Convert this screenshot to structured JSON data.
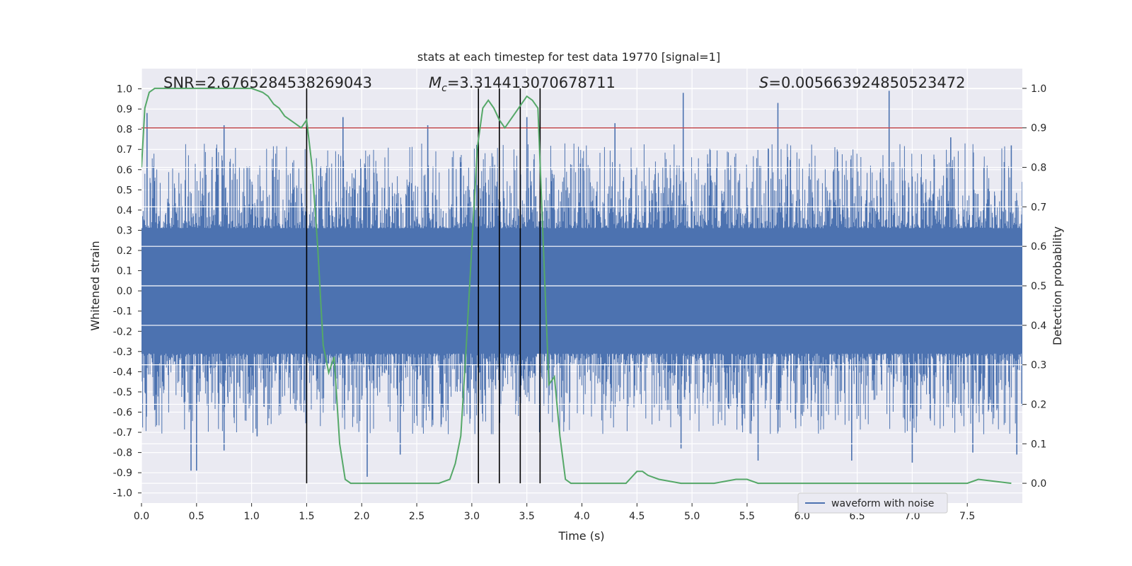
{
  "chart_data": {
    "type": "line",
    "title": "stats at each timestep for test data 19770 [signal=1]",
    "xlabel": "Time (s)",
    "ylabel": "Whitened strain",
    "y2label": "Detection probability",
    "xlim": [
      0,
      8
    ],
    "ylim": [
      -1.05,
      1.1
    ],
    "y2lim": [
      -0.05,
      1.05
    ],
    "x_ticks": [
      0.0,
      0.5,
      1.0,
      1.5,
      2.0,
      2.5,
      3.0,
      3.5,
      4.0,
      4.5,
      5.0,
      5.5,
      6.0,
      6.5,
      7.0,
      7.5
    ],
    "x_tick_labels": [
      "0.0",
      "0.5",
      "1.0",
      "1.5",
      "2.0",
      "2.5",
      "3.0",
      "3.5",
      "4.0",
      "4.5",
      "5.0",
      "5.5",
      "6.0",
      "6.5",
      "7.0",
      "7.5"
    ],
    "y_ticks": [
      -1.0,
      -0.9,
      -0.8,
      -0.7,
      -0.6,
      -0.5,
      -0.4,
      -0.3,
      -0.2,
      -0.1,
      0.0,
      0.1,
      0.2,
      0.3,
      0.4,
      0.5,
      0.6,
      0.7,
      0.8,
      0.9,
      1.0
    ],
    "y_tick_labels": [
      "-1.0",
      "-0.9",
      "-0.8",
      "-0.7",
      "-0.6",
      "-0.5",
      "-0.4",
      "-0.3",
      "-0.2",
      "-0.1",
      "0.0",
      "0.1",
      "0.2",
      "0.3",
      "0.4",
      "0.5",
      "0.6",
      "0.7",
      "0.8",
      "0.9",
      "1.0"
    ],
    "y2_ticks": [
      0.0,
      0.1,
      0.2,
      0.3,
      0.4,
      0.5,
      0.6,
      0.7,
      0.8,
      0.9,
      1.0
    ],
    "y2_tick_labels": [
      "0.0",
      "0.1",
      "0.2",
      "0.3",
      "0.4",
      "0.5",
      "0.6",
      "0.7",
      "0.8",
      "0.9",
      "1.0"
    ],
    "grid": true,
    "legend": {
      "entries": [
        "waveform with noise"
      ],
      "placement": "lower-right"
    },
    "annotations": {
      "snr_prefix": "SNR=",
      "snr_value": "2.6765284538269043",
      "mc_symbol": "M",
      "mc_subscript": "c",
      "mc_value": "=3.314413070678711",
      "s_symbol": "S",
      "s_value": "=0.005663924850523472"
    },
    "threshold_y2": 0.9,
    "vertical_markers_x": [
      1.5,
      3.06,
      3.25,
      3.44,
      3.62
    ],
    "vertical_markers_y2_range": [
      0.0,
      1.0
    ],
    "waveform": {
      "name": "waveform with noise",
      "color": "#4c72b0",
      "core_half_width": 0.31,
      "outlier_peaks_high": [
        [
          0.05,
          0.88
        ],
        [
          0.75,
          0.82
        ],
        [
          1.83,
          0.86
        ],
        [
          2.6,
          0.82
        ],
        [
          3.5,
          0.86
        ],
        [
          4.3,
          0.83
        ],
        [
          4.92,
          0.98
        ],
        [
          5.78,
          0.93
        ],
        [
          6.79,
          0.99
        ],
        [
          7.35,
          0.76
        ],
        [
          7.9,
          0.72
        ]
      ],
      "outlier_peaks_low": [
        [
          0.45,
          -0.89
        ],
        [
          0.5,
          -0.89
        ],
        [
          0.75,
          -0.79
        ],
        [
          1.05,
          -0.72
        ],
        [
          2.05,
          -0.92
        ],
        [
          2.35,
          -0.81
        ],
        [
          4.9,
          -0.78
        ],
        [
          5.6,
          -0.84
        ],
        [
          6.45,
          -0.84
        ],
        [
          7.0,
          -0.85
        ],
        [
          7.55,
          -0.8
        ],
        [
          7.95,
          -0.81
        ]
      ]
    },
    "detection_probability": {
      "color": "#55a868",
      "x": [
        0.0,
        0.03,
        0.07,
        0.12,
        0.2,
        0.4,
        0.6,
        0.8,
        1.0,
        1.1,
        1.15,
        1.2,
        1.25,
        1.3,
        1.35,
        1.4,
        1.45,
        1.5,
        1.55,
        1.6,
        1.65,
        1.7,
        1.75,
        1.8,
        1.85,
        1.9,
        2.0,
        2.2,
        2.4,
        2.6,
        2.7,
        2.8,
        2.85,
        2.9,
        2.95,
        3.0,
        3.05,
        3.1,
        3.15,
        3.2,
        3.25,
        3.3,
        3.35,
        3.4,
        3.45,
        3.5,
        3.55,
        3.6,
        3.65,
        3.7,
        3.75,
        3.8,
        3.85,
        3.9,
        4.0,
        4.2,
        4.4,
        4.5,
        4.55,
        4.6,
        4.7,
        4.9,
        5.2,
        5.4,
        5.5,
        5.6,
        5.7,
        6.0,
        6.2,
        6.4,
        6.6,
        7.0,
        7.3,
        7.5,
        7.6,
        7.9
      ],
      "y": [
        0.8,
        0.95,
        0.99,
        1.0,
        1.0,
        1.0,
        1.0,
        1.0,
        1.0,
        0.99,
        0.98,
        0.96,
        0.95,
        0.93,
        0.92,
        0.91,
        0.9,
        0.92,
        0.8,
        0.6,
        0.35,
        0.28,
        0.32,
        0.1,
        0.01,
        0.0,
        0.0,
        0.0,
        0.0,
        0.0,
        0.0,
        0.01,
        0.05,
        0.12,
        0.35,
        0.6,
        0.85,
        0.95,
        0.97,
        0.95,
        0.92,
        0.9,
        0.92,
        0.94,
        0.96,
        0.98,
        0.97,
        0.95,
        0.6,
        0.25,
        0.27,
        0.12,
        0.01,
        0.0,
        0.0,
        0.0,
        0.0,
        0.03,
        0.03,
        0.02,
        0.01,
        0.0,
        0.0,
        0.01,
        0.01,
        0.0,
        0.0,
        0.0,
        0.0,
        0.0,
        0.0,
        0.0,
        0.0,
        0.0,
        0.01,
        0.0
      ]
    }
  }
}
